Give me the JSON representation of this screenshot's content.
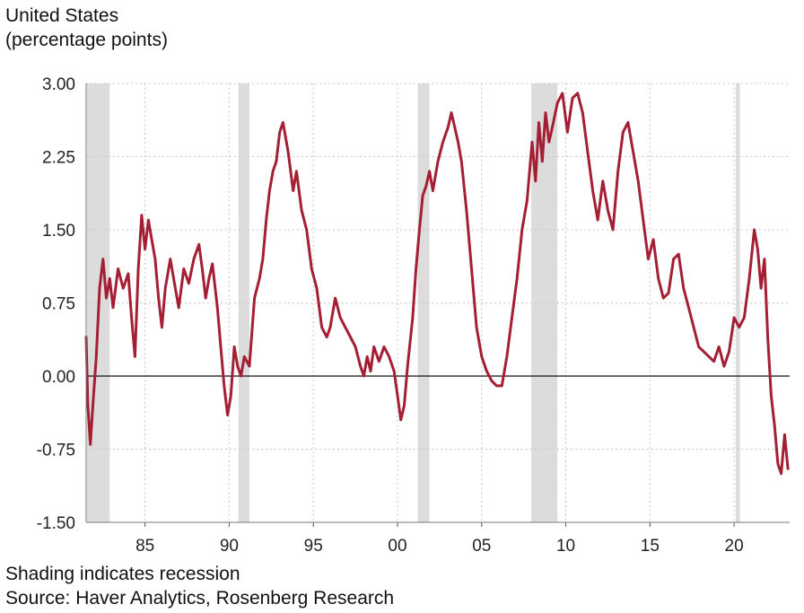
{
  "header": {
    "title_line1": "United States",
    "title_line2": "(percentage points)"
  },
  "footer": {
    "note": "Shading indicates recession",
    "source": "Source: Haver Analytics, Rosenberg Research"
  },
  "chart_data": {
    "type": "line",
    "title": "United States",
    "ylabel": "(percentage points)",
    "xlim": [
      1981.5,
      2023.3
    ],
    "ylim": [
      -1.5,
      3.0
    ],
    "yticks": [
      3.0,
      2.25,
      1.5,
      0.75,
      0.0,
      -0.75,
      -1.5
    ],
    "ytick_labels": [
      "3.00",
      "2.25",
      "1.50",
      "0.75",
      "0.00",
      "-0.75",
      "-1.50"
    ],
    "xticks": [
      1985,
      1990,
      1995,
      2000,
      2005,
      2010,
      2015,
      2020
    ],
    "xtick_labels": [
      "85",
      "90",
      "95",
      "00",
      "05",
      "10",
      "15",
      "20"
    ],
    "grid": true,
    "zero_line": true,
    "line_color": "#a41e34",
    "recession_color": "#dcdcdc",
    "recessions": [
      [
        1981.55,
        1982.9
      ],
      [
        1990.55,
        1991.2
      ],
      [
        2001.2,
        2001.9
      ],
      [
        2007.95,
        2009.5
      ],
      [
        2020.1,
        2020.35
      ]
    ],
    "series": [
      {
        "x": [
          1981.5,
          1981.6,
          1981.75,
          1981.9,
          1982.1,
          1982.3,
          1982.5,
          1982.7,
          1982.9,
          1983.1,
          1983.4,
          1983.7,
          1984.0,
          1984.2,
          1984.4,
          1984.6,
          1984.8,
          1985.0,
          1985.2,
          1985.4,
          1985.6,
          1985.8,
          1986.0,
          1986.2,
          1986.5,
          1986.8,
          1987.0,
          1987.3,
          1987.6,
          1987.9,
          1988.2,
          1988.4,
          1988.6,
          1988.8,
          1989.0,
          1989.3,
          1989.5,
          1989.7,
          1989.9,
          1990.1,
          1990.3,
          1990.5,
          1990.7,
          1990.9,
          1991.2,
          1991.5,
          1991.8,
          1992.0,
          1992.2,
          1992.4,
          1992.6,
          1992.8,
          1993.0,
          1993.2,
          1993.5,
          1993.8,
          1994.0,
          1994.3,
          1994.6,
          1994.9,
          1995.2,
          1995.5,
          1995.8,
          1996.0,
          1996.3,
          1996.6,
          1996.9,
          1997.2,
          1997.5,
          1997.8,
          1998.0,
          1998.2,
          1998.4,
          1998.6,
          1998.9,
          1999.2,
          1999.5,
          1999.8,
          2000.0,
          2000.2,
          2000.4,
          2000.6,
          2000.9,
          2001.1,
          2001.3,
          2001.5,
          2001.7,
          2001.9,
          2002.1,
          2002.4,
          2002.7,
          2003.0,
          2003.2,
          2003.4,
          2003.6,
          2003.8,
          2004.1,
          2004.4,
          2004.7,
          2005.0,
          2005.3,
          2005.6,
          2005.9,
          2006.2,
          2006.5,
          2006.8,
          2007.1,
          2007.4,
          2007.7,
          2008.0,
          2008.2,
          2008.4,
          2008.6,
          2008.8,
          2009.0,
          2009.2,
          2009.5,
          2009.8,
          2010.1,
          2010.4,
          2010.7,
          2011.0,
          2011.3,
          2011.6,
          2011.9,
          2012.2,
          2012.5,
          2012.8,
          2013.1,
          2013.4,
          2013.7,
          2014.0,
          2014.3,
          2014.6,
          2014.9,
          2015.2,
          2015.5,
          2015.8,
          2016.1,
          2016.4,
          2016.7,
          2017.0,
          2017.3,
          2017.6,
          2017.9,
          2018.2,
          2018.5,
          2018.8,
          2019.1,
          2019.4,
          2019.7,
          2020.0,
          2020.3,
          2020.6,
          2020.9,
          2021.2,
          2021.4,
          2021.6,
          2021.8,
          2022.0,
          2022.2,
          2022.4,
          2022.6,
          2022.8,
          2023.0,
          2023.2
        ],
        "y": [
          0.4,
          -0.3,
          -0.7,
          -0.3,
          0.2,
          0.9,
          1.2,
          0.8,
          1.0,
          0.7,
          1.1,
          0.9,
          1.05,
          0.6,
          0.2,
          1.1,
          1.65,
          1.3,
          1.6,
          1.4,
          1.2,
          0.8,
          0.5,
          0.9,
          1.2,
          0.9,
          0.7,
          1.1,
          0.95,
          1.2,
          1.35,
          1.1,
          0.8,
          1.0,
          1.15,
          0.7,
          0.3,
          -0.1,
          -0.4,
          -0.2,
          0.3,
          0.1,
          0.0,
          0.2,
          0.1,
          0.8,
          1.0,
          1.2,
          1.6,
          1.9,
          2.1,
          2.2,
          2.5,
          2.6,
          2.3,
          1.9,
          2.1,
          1.7,
          1.5,
          1.1,
          0.9,
          0.5,
          0.4,
          0.5,
          0.8,
          0.6,
          0.5,
          0.4,
          0.3,
          0.1,
          0.0,
          0.2,
          0.05,
          0.3,
          0.15,
          0.3,
          0.2,
          0.05,
          -0.2,
          -0.45,
          -0.3,
          0.1,
          0.6,
          1.1,
          1.5,
          1.85,
          1.95,
          2.1,
          1.9,
          2.2,
          2.4,
          2.55,
          2.7,
          2.55,
          2.4,
          2.2,
          1.7,
          1.1,
          0.5,
          0.2,
          0.05,
          -0.05,
          -0.1,
          -0.1,
          0.2,
          0.6,
          1.0,
          1.5,
          1.8,
          2.4,
          2.0,
          2.6,
          2.2,
          2.7,
          2.4,
          2.55,
          2.8,
          2.9,
          2.5,
          2.85,
          2.9,
          2.7,
          2.3,
          1.9,
          1.6,
          2.0,
          1.7,
          1.5,
          2.1,
          2.5,
          2.6,
          2.3,
          2.0,
          1.6,
          1.2,
          1.4,
          1.0,
          0.8,
          0.85,
          1.2,
          1.25,
          0.9,
          0.7,
          0.5,
          0.3,
          0.25,
          0.2,
          0.15,
          0.3,
          0.1,
          0.25,
          0.6,
          0.5,
          0.6,
          1.0,
          1.5,
          1.3,
          0.9,
          1.2,
          0.4,
          -0.2,
          -0.5,
          -0.9,
          -1.0,
          -0.6,
          -0.95
        ]
      }
    ]
  }
}
